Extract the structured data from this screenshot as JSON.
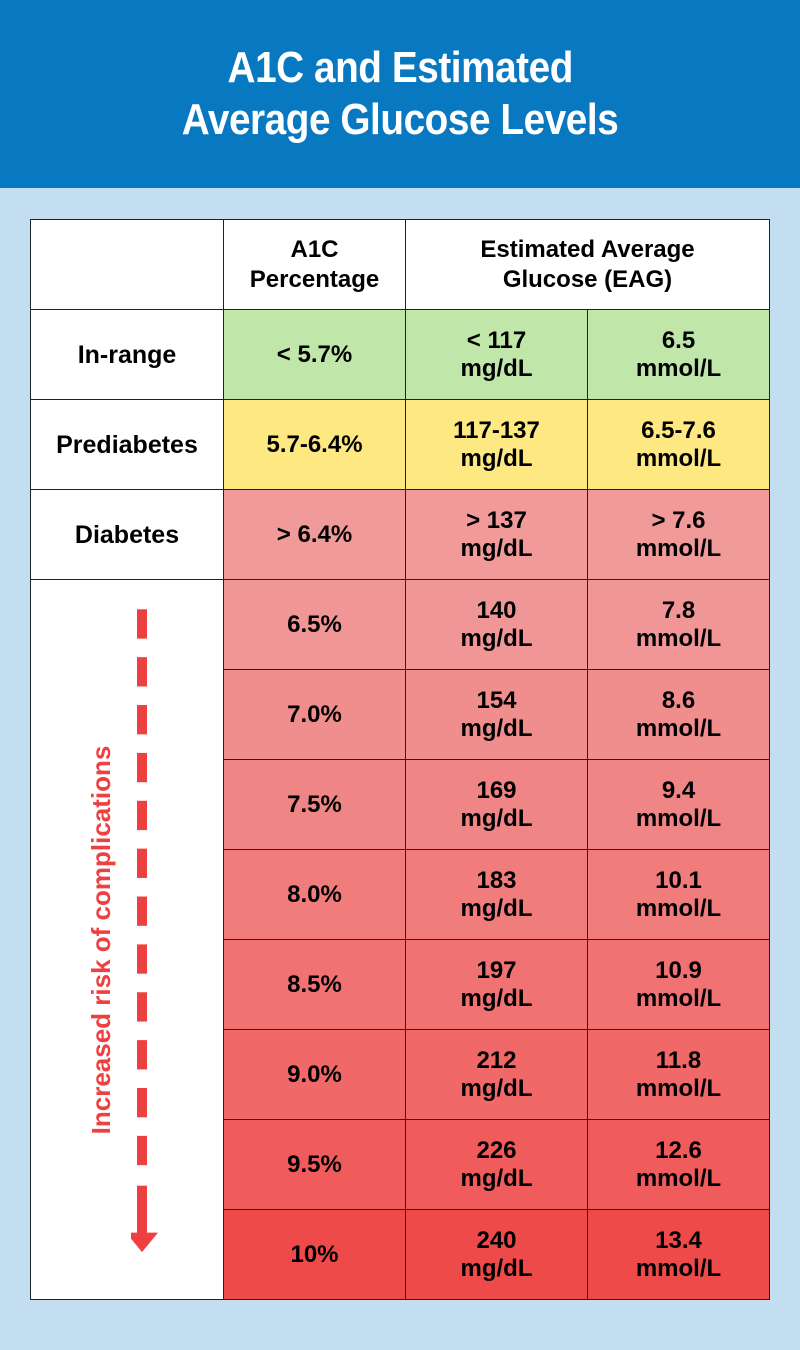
{
  "header": {
    "title_line1": "A1C and Estimated",
    "title_line2": "Average Glucose Levels",
    "bg_color": "#0878c0"
  },
  "chart_data": {
    "type": "table",
    "title": "A1C and Estimated Average Glucose Levels",
    "columns": {
      "a1c": "A1C Percentage",
      "eag": "Estimated Average Glucose (EAG)"
    },
    "column_headers": {
      "a1c_line1": "A1C",
      "a1c_line2": "Percentage",
      "eag_line1": "Estimated Average",
      "eag_line2": "Glucose (EAG)"
    },
    "category_rows": [
      {
        "label": "In-range",
        "a1c": "< 5.7%",
        "mgdl_value": "< 117",
        "mgdl_unit": "mg/dL",
        "mmol_value": "6.5",
        "mmol_unit": "mmol/L",
        "color": "#c0e6aa"
      },
      {
        "label": "Prediabetes",
        "a1c": "5.7-6.4%",
        "mgdl_value": "117-137",
        "mgdl_unit": "mg/dL",
        "mmol_value": "6.5-7.6",
        "mmol_unit": "mmol/L",
        "color": "#fde882"
      },
      {
        "label": "Diabetes",
        "a1c": "> 6.4%",
        "mgdl_value": "> 137",
        "mgdl_unit": "mg/dL",
        "mmol_value": "> 7.6",
        "mmol_unit": "mmol/L",
        "color": "#f09a9a"
      }
    ],
    "risk_label": "Increased risk of complications",
    "risk_color": "#ee4040",
    "value_rows": [
      {
        "a1c": "6.5%",
        "mgdl_value": "140",
        "mgdl_unit": "mg/dL",
        "mmol_value": "7.8",
        "mmol_unit": "mmol/L",
        "color": "#f09696"
      },
      {
        "a1c": "7.0%",
        "mgdl_value": "154",
        "mgdl_unit": "mg/dL",
        "mmol_value": "8.6",
        "mmol_unit": "mmol/L",
        "color": "#f08e8e"
      },
      {
        "a1c": "7.5%",
        "mgdl_value": "169",
        "mgdl_unit": "mg/dL",
        "mmol_value": "9.4",
        "mmol_unit": "mmol/L",
        "color": "#f08585"
      },
      {
        "a1c": "8.0%",
        "mgdl_value": "183",
        "mgdl_unit": "mg/dL",
        "mmol_value": "10.1",
        "mmol_unit": "mmol/L",
        "color": "#f07c7c"
      },
      {
        "a1c": "8.5%",
        "mgdl_value": "197",
        "mgdl_unit": "mg/dL",
        "mmol_value": "10.9",
        "mmol_unit": "mmol/L",
        "color": "#f07272"
      },
      {
        "a1c": "9.0%",
        "mgdl_value": "212",
        "mgdl_unit": "mg/dL",
        "mmol_value": "11.8",
        "mmol_unit": "mmol/L",
        "color": "#f06868"
      },
      {
        "a1c": "9.5%",
        "mgdl_value": "226",
        "mgdl_unit": "mg/dL",
        "mmol_value": "12.6",
        "mmol_unit": "mmol/L",
        "color": "#f05c5c"
      },
      {
        "a1c": "10%",
        "mgdl_value": "240",
        "mgdl_unit": "mg/dL",
        "mmol_value": "13.4",
        "mmol_unit": "mmol/L",
        "color": "#ee4a4a"
      }
    ]
  }
}
